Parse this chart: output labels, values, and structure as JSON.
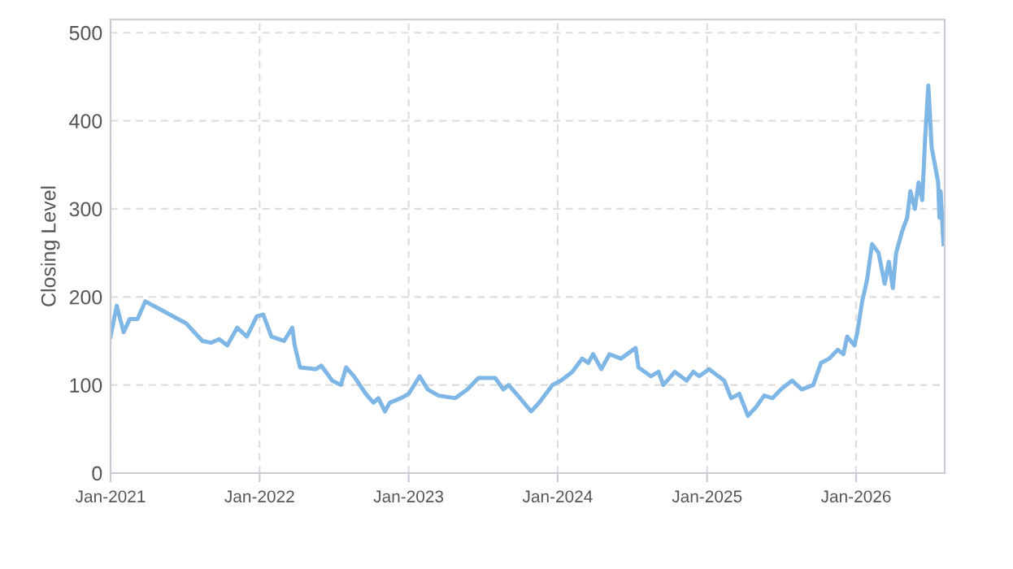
{
  "chart_data": {
    "type": "line",
    "ylabel": "Closing Level",
    "x": [
      "2021-01-01",
      "2021-01-16",
      "2021-02-02",
      "2021-02-17",
      "2021-03-08",
      "2021-03-27",
      "2021-05-06",
      "2021-05-26",
      "2021-07-05",
      "2021-08-14",
      "2021-09-04",
      "2021-09-24",
      "2021-10-14",
      "2021-11-07",
      "2021-12-01",
      "2021-12-25",
      "2022-01-10",
      "2022-01-30",
      "2022-03-02",
      "2022-03-22",
      "2022-03-28",
      "2022-04-10",
      "2022-05-19",
      "2022-06-01",
      "2022-06-28",
      "2022-07-19",
      "2022-08-01",
      "2022-08-20",
      "2022-09-18",
      "2022-10-07",
      "2022-10-19",
      "2022-11-04",
      "2022-11-16",
      "2022-12-13",
      "2023-01-01",
      "2023-01-28",
      "2023-02-17",
      "2023-03-15",
      "2023-04-25",
      "2023-05-25",
      "2023-06-21",
      "2023-08-01",
      "2023-08-21",
      "2023-09-03",
      "2023-10-01",
      "2023-10-28",
      "2023-11-17",
      "2023-12-19",
      "2024-01-09",
      "2024-02-06",
      "2024-03-01",
      "2024-03-16",
      "2024-03-28",
      "2024-04-17",
      "2024-05-07",
      "2024-06-04",
      "2024-07-10",
      "2024-07-17",
      "2024-08-16",
      "2024-09-04",
      "2024-09-16",
      "2024-10-14",
      "2024-11-12",
      "2024-11-28",
      "2024-12-13",
      "2025-01-06",
      "2025-02-12",
      "2025-03-01",
      "2025-03-21",
      "2025-04-11",
      "2025-05-01",
      "2025-05-21",
      "2025-06-10",
      "2025-07-01",
      "2025-07-28",
      "2025-08-21",
      "2025-09-18",
      "2025-10-07",
      "2025-10-27",
      "2025-11-17",
      "2025-12-01",
      "2025-12-10",
      "2025-12-28",
      "2026-01-04",
      "2026-01-16",
      "2026-01-28",
      "2026-02-09",
      "2026-02-25",
      "2026-03-12",
      "2026-03-22",
      "2026-04-01",
      "2026-04-09",
      "2026-04-24",
      "2026-05-06",
      "2026-05-14",
      "2026-05-25",
      "2026-06-03",
      "2026-06-12",
      "2026-06-19",
      "2026-06-27",
      "2026-07-05",
      "2026-07-13",
      "2026-07-21",
      "2026-07-24",
      "2026-07-27",
      "2026-08-03"
    ],
    "series": [
      {
        "color": "#7eb6e6",
        "values": [
          155,
          190,
          160,
          175,
          175,
          195,
          185,
          180,
          170,
          150,
          148,
          152,
          145,
          165,
          155,
          178,
          180,
          155,
          150,
          165,
          145,
          120,
          118,
          122,
          105,
          100,
          120,
          110,
          90,
          80,
          85,
          70,
          80,
          85,
          90,
          110,
          95,
          88,
          85,
          95,
          108,
          108,
          95,
          100,
          85,
          70,
          80,
          100,
          105,
          115,
          130,
          125,
          135,
          118,
          135,
          130,
          142,
          120,
          110,
          115,
          100,
          115,
          105,
          115,
          110,
          118,
          105,
          85,
          90,
          65,
          75,
          88,
          85,
          95,
          105,
          95,
          100,
          125,
          130,
          140,
          135,
          155,
          145,
          160,
          195,
          220,
          260,
          250,
          215,
          240,
          210,
          250,
          275,
          290,
          320,
          300,
          330,
          310,
          380,
          440,
          370,
          350,
          330,
          290,
          320,
          260
        ]
      }
    ],
    "xlim": [
      "2021-01-01",
      "2026-08-06"
    ],
    "xticks": [
      {
        "value": "2021-01-01",
        "label": "Jan-2021"
      },
      {
        "value": "2022-01-01",
        "label": "Jan-2022"
      },
      {
        "value": "2023-01-01",
        "label": "Jan-2023"
      },
      {
        "value": "2024-01-01",
        "label": "Jan-2024"
      },
      {
        "value": "2025-01-01",
        "label": "Jan-2025"
      },
      {
        "value": "2026-01-01",
        "label": "Jan-2026"
      }
    ],
    "ylim": [
      0,
      515
    ],
    "yticks": [
      0,
      100,
      200,
      300,
      400,
      500
    ],
    "grid": true,
    "legend": false,
    "marker": "none",
    "line_style": "solid"
  }
}
